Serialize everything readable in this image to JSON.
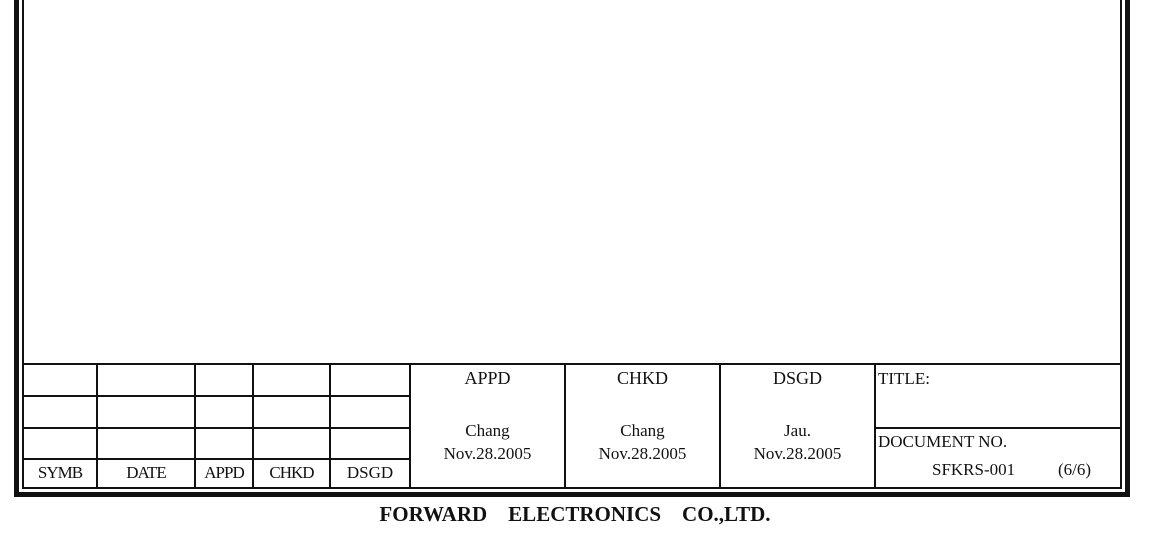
{
  "revision_table": {
    "headers": [
      "SYMB",
      "DATE",
      "APPD",
      "CHKD",
      "DSGD"
    ]
  },
  "approvals": [
    {
      "role": "APPD",
      "name": "Chang",
      "date": "Nov.28.2005"
    },
    {
      "role": "CHKD",
      "name": "Chang",
      "date": "Nov.28.2005"
    },
    {
      "role": "DSGD",
      "name": "Jau.",
      "date": "Nov.28.2005"
    }
  ],
  "title_block": {
    "title_label": "TITLE:",
    "doc_no_label": "DOCUMENT NO.",
    "doc_no": "SFKRS-001",
    "page": "(6/6)"
  },
  "company": "FORWARD    ELECTRONICS    CO.,LTD."
}
